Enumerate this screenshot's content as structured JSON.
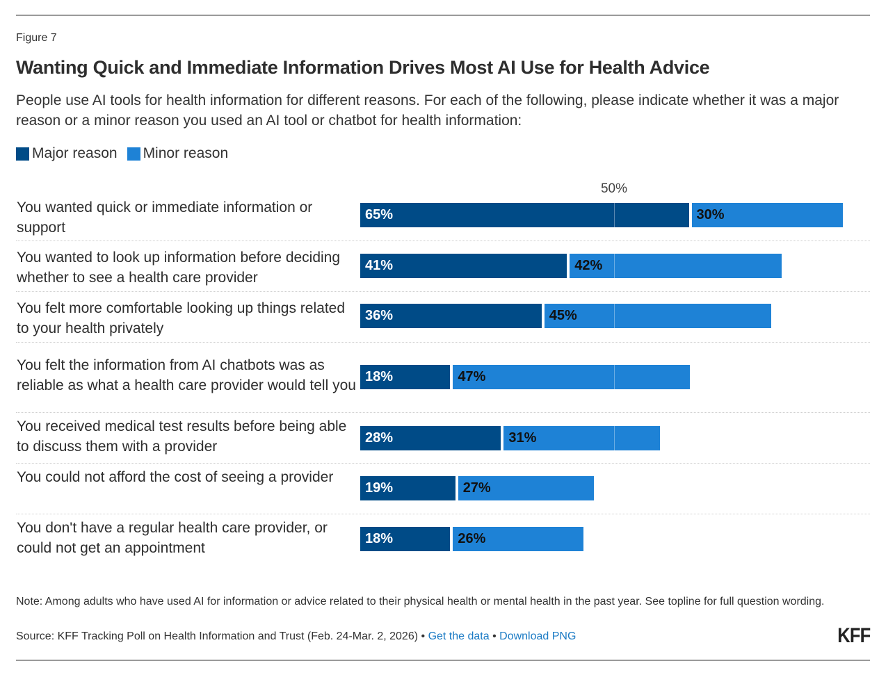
{
  "figure_label": "Figure 7",
  "title": "Wanting Quick and Immediate Information Drives Most AI Use for Health Advice",
  "subtitle": "People use AI tools for health information for different reasons. For each of the following, please indicate whether it was a major reason or a minor reason you used an AI tool or chatbot for health information:",
  "colors": {
    "major": "#004b87",
    "minor": "#1e82d6",
    "link": "#1a7ac4"
  },
  "chart_data": {
    "type": "bar",
    "orientation": "horizontal",
    "stacked": true,
    "title": "Wanting Quick and Immediate Information Drives Most AI Use for Health Advice",
    "xlabel": "",
    "ylabel": "",
    "xlim": [
      0,
      100
    ],
    "reference_line": {
      "value": 50,
      "label": "50%"
    },
    "legend_position": "top-left",
    "categories": [
      "You wanted quick or immediate information or support",
      "You wanted to look up information before deciding whether to see a health care provider",
      "You felt more comfortable looking up things related to your health privately",
      "You felt the information from AI chatbots was as reliable as what a health care provider would tell you",
      "You received medical test results before being able to discuss them with a provider",
      "You could not afford the cost of seeing a provider",
      "You don't have a regular health care provider, or could not get an appointment"
    ],
    "series": [
      {
        "name": "Major reason",
        "values": [
          65,
          41,
          36,
          18,
          28,
          19,
          18
        ],
        "labels": [
          "65%",
          "41%",
          "36%",
          "18%",
          "28%",
          "19%",
          "18%"
        ]
      },
      {
        "name": "Minor reason",
        "values": [
          30,
          42,
          45,
          47,
          31,
          27,
          26
        ],
        "labels": [
          "30%",
          "42%",
          "45%",
          "47%",
          "31%",
          "27%",
          "26%"
        ]
      }
    ]
  },
  "note": "Note: Among adults who have used AI for information or advice related to their physical health or mental health in the past year. See topline for full question wording.",
  "source": {
    "text": "Source: KFF Tracking Poll on Health Information and Trust (Feb. 24-Mar. 2, 2026)",
    "separator": "•",
    "get_data": "Get the data",
    "download": "Download PNG"
  },
  "logo": "KFF"
}
